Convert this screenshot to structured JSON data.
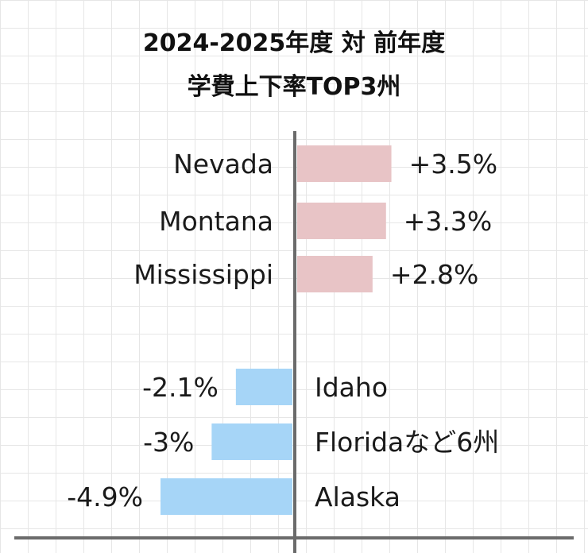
{
  "chart_data": {
    "type": "bar",
    "orientation": "horizontal-diverging",
    "title_lines": [
      "2024-2025年度 対 前年度",
      "学費上下率TOP3州"
    ],
    "unit": "%",
    "categories": [
      "Nevada",
      "Montana",
      "Mississippi",
      "Idaho",
      "Floridaなど6州",
      "Alaska"
    ],
    "values": [
      3.5,
      3.3,
      2.8,
      -2.1,
      -3.0,
      -4.9
    ],
    "value_labels": [
      "+3.5%",
      "+3.3%",
      "+2.8%",
      "-2.1%",
      "-3%",
      "-4.9%"
    ],
    "colors": {
      "positive": "#e8c4c6",
      "negative": "#a6d5f7",
      "axis": "#6b6b6b",
      "grid": "#e6e6e6"
    },
    "grid": true,
    "legend": "none"
  }
}
